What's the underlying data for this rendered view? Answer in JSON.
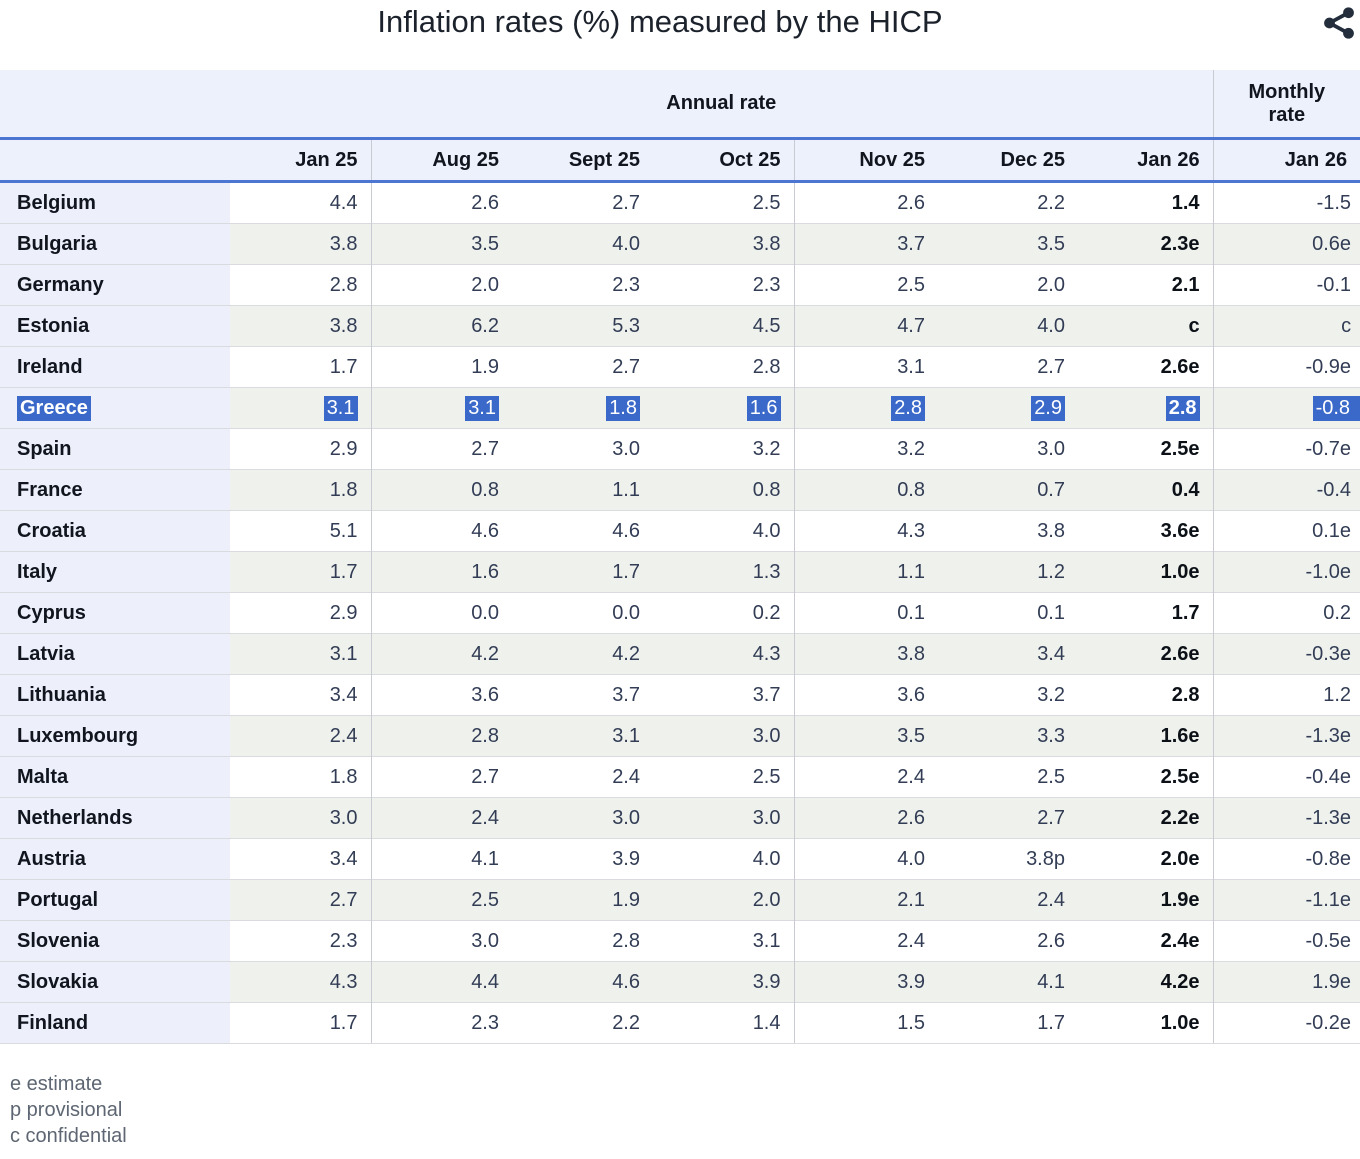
{
  "chart_data": {
    "type": "table",
    "title": "Inflation rates (%) measured by the HICP",
    "group_headers": {
      "annual": "Annual rate",
      "monthly": "Monthly rate"
    },
    "columns": [
      "Jan 25",
      "Aug 25",
      "Sept 25",
      "Oct 25",
      "Nov 25",
      "Dec 25",
      "Jan 26"
    ],
    "monthly_column": "Jan 26",
    "rows": [
      {
        "country": "Belgium",
        "values": [
          "4.4",
          "2.6",
          "2.7",
          "2.5",
          "2.6",
          "2.2",
          "1.4"
        ],
        "monthly": "-1.5"
      },
      {
        "country": "Bulgaria",
        "values": [
          "3.8",
          "3.5",
          "4.0",
          "3.8",
          "3.7",
          "3.5",
          "2.3e"
        ],
        "monthly": "0.6e"
      },
      {
        "country": "Germany",
        "values": [
          "2.8",
          "2.0",
          "2.3",
          "2.3",
          "2.5",
          "2.0",
          "2.1"
        ],
        "monthly": "-0.1"
      },
      {
        "country": "Estonia",
        "values": [
          "3.8",
          "6.2",
          "5.3",
          "4.5",
          "4.7",
          "4.0",
          "c"
        ],
        "monthly": "c"
      },
      {
        "country": "Ireland",
        "values": [
          "1.7",
          "1.9",
          "2.7",
          "2.8",
          "3.1",
          "2.7",
          "2.6e"
        ],
        "monthly": "-0.9e"
      },
      {
        "country": "Greece",
        "values": [
          "3.1",
          "3.1",
          "1.8",
          "1.6",
          "2.8",
          "2.9",
          "2.8"
        ],
        "monthly": "-0.8",
        "highlighted": true
      },
      {
        "country": "Spain",
        "values": [
          "2.9",
          "2.7",
          "3.0",
          "3.2",
          "3.2",
          "3.0",
          "2.5e"
        ],
        "monthly": "-0.7e"
      },
      {
        "country": "France",
        "values": [
          "1.8",
          "0.8",
          "1.1",
          "0.8",
          "0.8",
          "0.7",
          "0.4"
        ],
        "monthly": "-0.4"
      },
      {
        "country": "Croatia",
        "values": [
          "5.1",
          "4.6",
          "4.6",
          "4.0",
          "4.3",
          "3.8",
          "3.6e"
        ],
        "monthly": "0.1e"
      },
      {
        "country": "Italy",
        "values": [
          "1.7",
          "1.6",
          "1.7",
          "1.3",
          "1.1",
          "1.2",
          "1.0e"
        ],
        "monthly": "-1.0e"
      },
      {
        "country": "Cyprus",
        "values": [
          "2.9",
          "0.0",
          "0.0",
          "0.2",
          "0.1",
          "0.1",
          "1.7"
        ],
        "monthly": "0.2"
      },
      {
        "country": "Latvia",
        "values": [
          "3.1",
          "4.2",
          "4.2",
          "4.3",
          "3.8",
          "3.4",
          "2.6e"
        ],
        "monthly": "-0.3e"
      },
      {
        "country": "Lithuania",
        "values": [
          "3.4",
          "3.6",
          "3.7",
          "3.7",
          "3.6",
          "3.2",
          "2.8"
        ],
        "monthly": "1.2"
      },
      {
        "country": "Luxembourg",
        "values": [
          "2.4",
          "2.8",
          "3.1",
          "3.0",
          "3.5",
          "3.3",
          "1.6e"
        ],
        "monthly": "-1.3e"
      },
      {
        "country": "Malta",
        "values": [
          "1.8",
          "2.7",
          "2.4",
          "2.5",
          "2.4",
          "2.5",
          "2.5e"
        ],
        "monthly": "-0.4e"
      },
      {
        "country": "Netherlands",
        "values": [
          "3.0",
          "2.4",
          "3.0",
          "3.0",
          "2.6",
          "2.7",
          "2.2e"
        ],
        "monthly": "-1.3e"
      },
      {
        "country": "Austria",
        "values": [
          "3.4",
          "4.1",
          "3.9",
          "4.0",
          "4.0",
          "3.8p",
          "2.0e"
        ],
        "monthly": "-0.8e"
      },
      {
        "country": "Portugal",
        "values": [
          "2.7",
          "2.5",
          "1.9",
          "2.0",
          "2.1",
          "2.4",
          "1.9e"
        ],
        "monthly": "-1.1e"
      },
      {
        "country": "Slovenia",
        "values": [
          "2.3",
          "3.0",
          "2.8",
          "3.1",
          "2.4",
          "2.6",
          "2.4e"
        ],
        "monthly": "-0.5e"
      },
      {
        "country": "Slovakia",
        "values": [
          "4.3",
          "4.4",
          "4.6",
          "3.9",
          "3.9",
          "4.1",
          "4.2e"
        ],
        "monthly": "1.9e"
      },
      {
        "country": "Finland",
        "values": [
          "1.7",
          "2.3",
          "2.2",
          "1.4",
          "1.5",
          "1.7",
          "1.0e"
        ],
        "monthly": "-0.2e"
      }
    ],
    "footnotes": [
      "e estimate",
      "p provisional",
      "c confidential"
    ],
    "highlighted_row": "Greece"
  },
  "icons": {
    "share": "share-icon"
  },
  "colors": {
    "selection_highlight": "#3a69c9",
    "selection_text": "#ffffff",
    "header_rule_blue": "#4c76d2",
    "header_background": "#edf1fb",
    "country_column_background": "#edf0fa",
    "zebra_row_background": "#eff1ed",
    "icon_color": "#232d3c"
  }
}
